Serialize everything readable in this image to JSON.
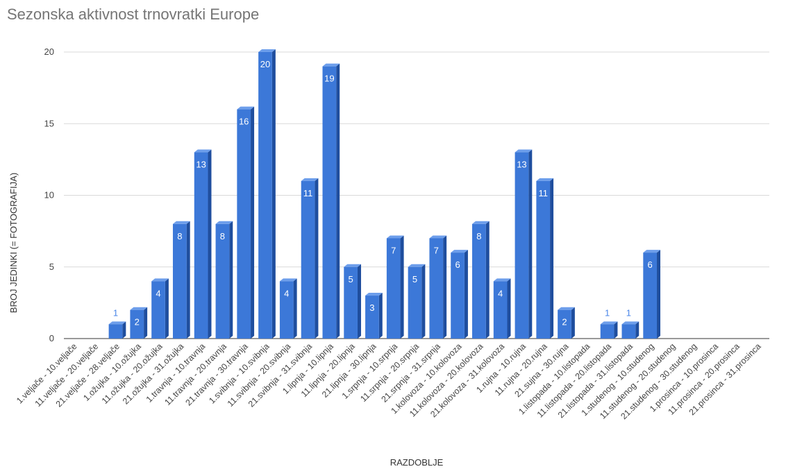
{
  "chart_data": {
    "type": "bar",
    "title": "Sezonska aktivnost trnovratki Europe",
    "xlabel": "RAZDOBLJE",
    "ylabel": "BROJ JEDINKI (= FOTOGRAFIJA)",
    "ylim": [
      0,
      20
    ],
    "yticks": [
      0,
      5,
      10,
      15,
      20
    ],
    "grid": true,
    "legend": "none",
    "colors": {
      "bar": "#3c78d8",
      "bar_side": "#1f4e9e",
      "bar_top": "#6d9eeb",
      "label_out": "#4a86e8",
      "grid": "#d9d9d9"
    },
    "categories": [
      "1.veljače - 10.veljače",
      "11.veljače - 20.veljače",
      "21.veljače - 28.veljače",
      "1.ožujka - 10.ožujka",
      "11.ožujka - 20.ožujka",
      "21.ožujka - 31.ožujka",
      "1.travnja - 10.travnja",
      "11.travnja - 20.travnja",
      "21.travnja - 30.travnja",
      "1.svibnja - 10.svibnja",
      "11.svibnja - 20.svibnja",
      "21.svibnja - 31.svibnja",
      "1.lipnja - 10.lipnja",
      "11.lipnja - 20.lipnja",
      "21.lipnja - 30.lipnja",
      "1.srpnja - 10.srpnja",
      "11.srpnja - 20.srpnja",
      "21.srpnja - 31.srpnja",
      "1.kolovoza - 10.kolovoza",
      "11.kolovoza - 20.kolovoza",
      "21.kolovoza - 31.kolovoza",
      "1.rujna - 10.rujna",
      "11.rujna - 20.rujna",
      "21.sujna - 30.rujna",
      "1.listopada - 10.listopada",
      "11.listopada - 20.listopada",
      "21.listopada - 31.listopada",
      "1.studenog - 10.studenog",
      "11.studenog - 20.studenog",
      "21.studenog - 30.studenog",
      "1.prosinca - 10.prosinca",
      "11.prosinca - 20.prosinca",
      "21.prosinca - 31.prosinca"
    ],
    "values": [
      0,
      0,
      1,
      2,
      4,
      8,
      13,
      8,
      16,
      20,
      4,
      11,
      19,
      5,
      3,
      7,
      5,
      7,
      6,
      8,
      4,
      13,
      11,
      2,
      0,
      1,
      1,
      6,
      0,
      0,
      0,
      0,
      0
    ]
  }
}
